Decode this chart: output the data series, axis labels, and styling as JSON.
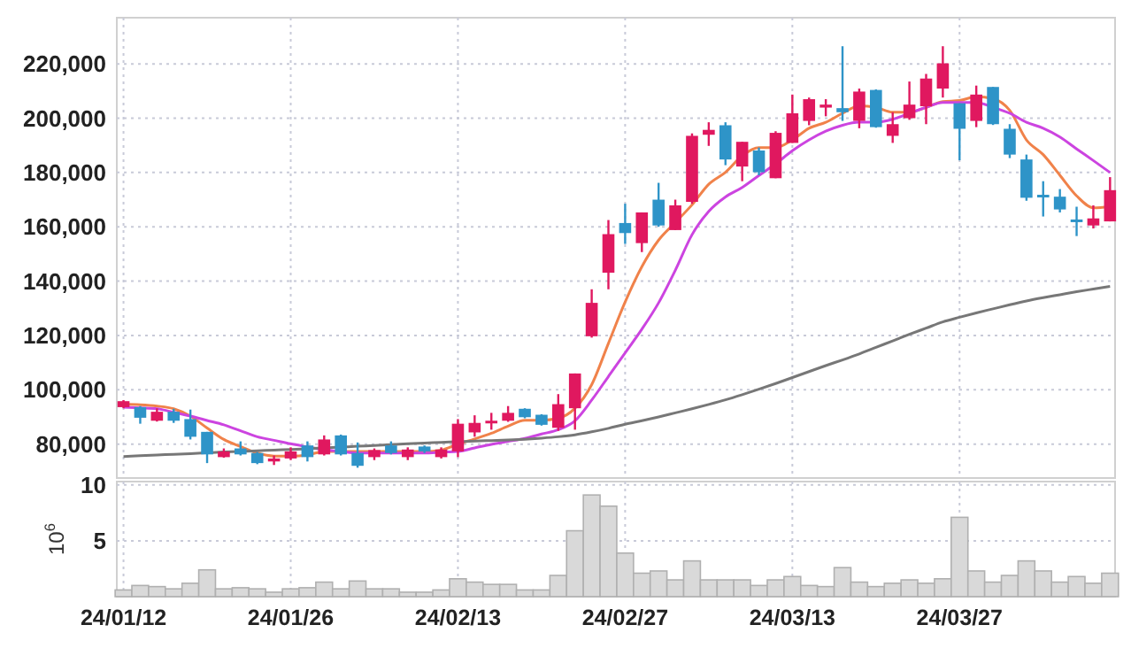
{
  "chart_data": [
    {
      "type": "candlestick",
      "categories": [
        null,
        null,
        null,
        null,
        null,
        null,
        null,
        null,
        null,
        null,
        null,
        null,
        null,
        null,
        null,
        null,
        null,
        null,
        null,
        null,
        null,
        null,
        null,
        null,
        null,
        null,
        null,
        null,
        null,
        null,
        null,
        null,
        null,
        null,
        null,
        null,
        null,
        null,
        null,
        null,
        null,
        null,
        null,
        null,
        null,
        null,
        null,
        null,
        null,
        null,
        null,
        null,
        null,
        null,
        null,
        null,
        null,
        null,
        null,
        null
      ],
      "ohlc": [
        [
          93600,
          96200,
          93200,
          95800
        ],
        [
          93600,
          94000,
          87500,
          89700
        ],
        [
          88600,
          93200,
          88300,
          91900
        ],
        [
          91900,
          93000,
          87800,
          88600
        ],
        [
          89200,
          92700,
          81700,
          82700
        ],
        [
          84500,
          84500,
          73000,
          76200
        ],
        [
          75200,
          78400,
          75000,
          77300
        ],
        [
          78400,
          81000,
          75800,
          76200
        ],
        [
          76700,
          77000,
          72600,
          73000
        ],
        [
          73600,
          75800,
          72300,
          74700
        ],
        [
          74700,
          78800,
          74100,
          77300
        ],
        [
          79500,
          81000,
          73600,
          75200
        ],
        [
          76200,
          83200,
          75800,
          81700
        ],
        [
          83200,
          83500,
          75800,
          76200
        ],
        [
          76700,
          80600,
          71300,
          72000
        ],
        [
          75200,
          78400,
          74100,
          77800
        ],
        [
          79500,
          81000,
          76200,
          76700
        ],
        [
          75200,
          78800,
          74100,
          78000
        ],
        [
          79100,
          79500,
          76700,
          77300
        ],
        [
          75200,
          78800,
          74700,
          78000
        ],
        [
          77300,
          89200,
          75200,
          87500
        ],
        [
          84300,
          90600,
          82700,
          87800
        ],
        [
          87900,
          91500,
          85300,
          88600
        ],
        [
          88600,
          94000,
          88200,
          91500
        ],
        [
          93000,
          93200,
          89500,
          89900
        ],
        [
          90800,
          91000,
          86800,
          87100
        ],
        [
          86000,
          98400,
          84900,
          94700
        ],
        [
          93200,
          106000,
          85300,
          106000
        ],
        [
          119700,
          137000,
          119200,
          132000
        ],
        [
          143100,
          162500,
          137000,
          157300
        ],
        [
          161400,
          168500,
          153700,
          157700
        ],
        [
          154000,
          165300,
          150700,
          165300
        ],
        [
          170000,
          176200,
          160000,
          160500
        ],
        [
          158800,
          170000,
          158800,
          167900
        ],
        [
          169200,
          194400,
          168500,
          193500
        ],
        [
          193900,
          198500,
          189800,
          195700
        ],
        [
          197400,
          198500,
          182700,
          184800
        ],
        [
          182200,
          191300,
          176800,
          191300
        ],
        [
          188100,
          189200,
          179000,
          180100
        ],
        [
          177900,
          195200,
          177900,
          194600
        ],
        [
          190900,
          208700,
          190900,
          201800
        ],
        [
          199000,
          207600,
          197400,
          207000
        ],
        [
          203900,
          207000,
          200700,
          205000
        ],
        [
          203700,
          226500,
          199000,
          202200
        ],
        [
          199000,
          210900,
          196300,
          209800
        ],
        [
          210400,
          210600,
          196500,
          196700
        ],
        [
          193500,
          202200,
          190900,
          197800
        ],
        [
          200000,
          213500,
          199400,
          205000
        ],
        [
          204400,
          216300,
          197800,
          214600
        ],
        [
          210900,
          226500,
          207600,
          220200
        ],
        [
          205500,
          205500,
          184500,
          196100
        ],
        [
          199000,
          212000,
          196700,
          208700
        ],
        [
          211500,
          211500,
          197500,
          197800
        ],
        [
          196100,
          197800,
          185300,
          186600
        ],
        [
          184800,
          186600,
          169600,
          170700
        ],
        [
          171800,
          176800,
          163800,
          170900
        ],
        [
          171100,
          173900,
          165300,
          166400
        ],
        [
          162700,
          167400,
          156600,
          161800
        ],
        [
          160500,
          167900,
          159400,
          163100
        ],
        [
          162000,
          178300,
          162000,
          173500
        ]
      ],
      "colors": [
        "#e0185f",
        "#2e94c8",
        "#e0185f",
        "#2e94c8",
        "#2e94c8",
        "#2e94c8",
        "#e0185f",
        "#2e94c8",
        "#2e94c8",
        "#e0185f",
        "#e0185f",
        "#2e94c8",
        "#e0185f",
        "#2e94c8",
        "#2e94c8",
        "#e0185f",
        "#2e94c8",
        "#e0185f",
        "#2e94c8",
        "#e0185f",
        "#e0185f",
        "#e0185f",
        "#e0185f",
        "#e0185f",
        "#2e94c8",
        "#2e94c8",
        "#e0185f",
        "#e0185f",
        "#e0185f",
        "#e0185f",
        "#2e94c8",
        "#e0185f",
        "#2e94c8",
        "#e0185f",
        "#e0185f",
        "#e0185f",
        "#2e94c8",
        "#e0185f",
        "#2e94c8",
        "#e0185f",
        "#e0185f",
        "#e0185f",
        "#e0185f",
        "#2e94c8",
        "#e0185f",
        "#2e94c8",
        "#e0185f",
        "#e0185f",
        "#e0185f",
        "#e0185f",
        "#2e94c8",
        "#e0185f",
        "#2e94c8",
        "#2e94c8",
        "#2e94c8",
        "#2e94c8",
        "#2e94c8",
        "#2e94c8",
        "#e0185f",
        "#e0185f"
      ],
      "series": [
        {
          "type": "line",
          "color": "#f0824a",
          "values": [
            94700,
            94500,
            94000,
            93000,
            90300,
            85900,
            81700,
            79100,
            76700,
            75600,
            75600,
            76000,
            77300,
            77300,
            77300,
            77300,
            77300,
            77300,
            77300,
            77800,
            80000,
            81900,
            84000,
            86600,
            88800,
            88800,
            89500,
            93200,
            101900,
            117100,
            132300,
            145300,
            155100,
            161600,
            168100,
            175700,
            180100,
            186200,
            189200,
            189200,
            192000,
            196300,
            198500,
            201800,
            204600,
            204000,
            202200,
            202200,
            204000,
            206100,
            206500,
            207900,
            207200,
            202900,
            192000,
            186600,
            179000,
            171400,
            167000,
            167500
          ]
        },
        {
          "type": "line",
          "color": "#cc44e0",
          "values": [
            93600,
            93300,
            93000,
            91700,
            90300,
            88700,
            87100,
            84900,
            82700,
            81400,
            80100,
            79000,
            77900,
            77300,
            76700,
            76700,
            76700,
            76700,
            76700,
            77000,
            77300,
            78600,
            79900,
            81000,
            82100,
            83700,
            85300,
            88600,
            96200,
            104900,
            113600,
            122300,
            132000,
            144000,
            157100,
            165700,
            171000,
            174500,
            178900,
            183200,
            188000,
            192000,
            195200,
            197400,
            198500,
            198500,
            199600,
            201800,
            204000,
            205800,
            205800,
            205800,
            204000,
            201800,
            198500,
            196300,
            193100,
            188700,
            184400,
            180000
          ]
        },
        {
          "type": "line",
          "color": "#777777",
          "values": [
            75400,
            75700,
            76000,
            76200,
            76500,
            76800,
            77100,
            77300,
            77500,
            77800,
            78000,
            78300,
            78600,
            78900,
            79200,
            79500,
            79800,
            80100,
            80400,
            80600,
            80900,
            81100,
            81300,
            81500,
            81800,
            82200,
            82700,
            83400,
            84500,
            85800,
            87300,
            88600,
            90000,
            91500,
            93000,
            94600,
            96300,
            98200,
            100200,
            102300,
            104500,
            106700,
            108900,
            111000,
            113200,
            115600,
            118000,
            120400,
            122700,
            125000,
            126700,
            128300,
            129800,
            131300,
            132700,
            133900,
            135000,
            136100,
            137100,
            138100
          ]
        }
      ],
      "ylim": [
        67500,
        237000
      ],
      "yticks": [
        {
          "value": 80000,
          "label": "80,000"
        },
        {
          "value": 100000,
          "label": "100,000"
        },
        {
          "value": 120000,
          "label": "120,000"
        },
        {
          "value": 140000,
          "label": "140,000"
        },
        {
          "value": 160000,
          "label": "160,000"
        },
        {
          "value": 180000,
          "label": "180,000"
        },
        {
          "value": 200000,
          "label": "200,000"
        },
        {
          "value": 220000,
          "label": "220,000"
        }
      ],
      "grid": true,
      "tick_labels": "y"
    },
    {
      "type": "bar",
      "categories": [
        "24/01/12",
        null,
        null,
        null,
        null,
        null,
        null,
        null,
        null,
        null,
        "24/01/26",
        null,
        null,
        null,
        null,
        null,
        null,
        null,
        null,
        null,
        "24/02/13",
        null,
        null,
        null,
        null,
        null,
        null,
        null,
        null,
        null,
        "24/02/27",
        null,
        null,
        null,
        null,
        null,
        null,
        null,
        null,
        null,
        "24/03/13",
        null,
        null,
        null,
        null,
        null,
        null,
        null,
        null,
        null,
        "24/03/27",
        null,
        null,
        null,
        null,
        null,
        null,
        null,
        null,
        null
      ],
      "values": [
        0.6,
        1.0,
        0.9,
        0.7,
        1.2,
        2.4,
        0.7,
        0.8,
        0.7,
        0.4,
        0.7,
        0.8,
        1.3,
        0.7,
        1.4,
        0.7,
        0.7,
        0.4,
        0.4,
        0.6,
        1.6,
        1.3,
        1.1,
        1.1,
        0.6,
        0.6,
        1.9,
        5.9,
        9.1,
        8.1,
        3.9,
        2.1,
        2.3,
        1.5,
        3.2,
        1.5,
        1.5,
        1.5,
        1.0,
        1.5,
        1.8,
        1.0,
        0.9,
        2.6,
        1.3,
        0.9,
        1.2,
        1.5,
        1.2,
        1.6,
        7.1,
        2.3,
        1.3,
        1.9,
        3.2,
        2.3,
        1.3,
        1.8,
        1.2,
        2.1
      ],
      "color": "#d9d9d9",
      "ylabel": "10$^{6}$",
      "ylim": [
        0,
        10.3
      ],
      "yticks": [
        5,
        10
      ],
      "grid": true
    }
  ]
}
